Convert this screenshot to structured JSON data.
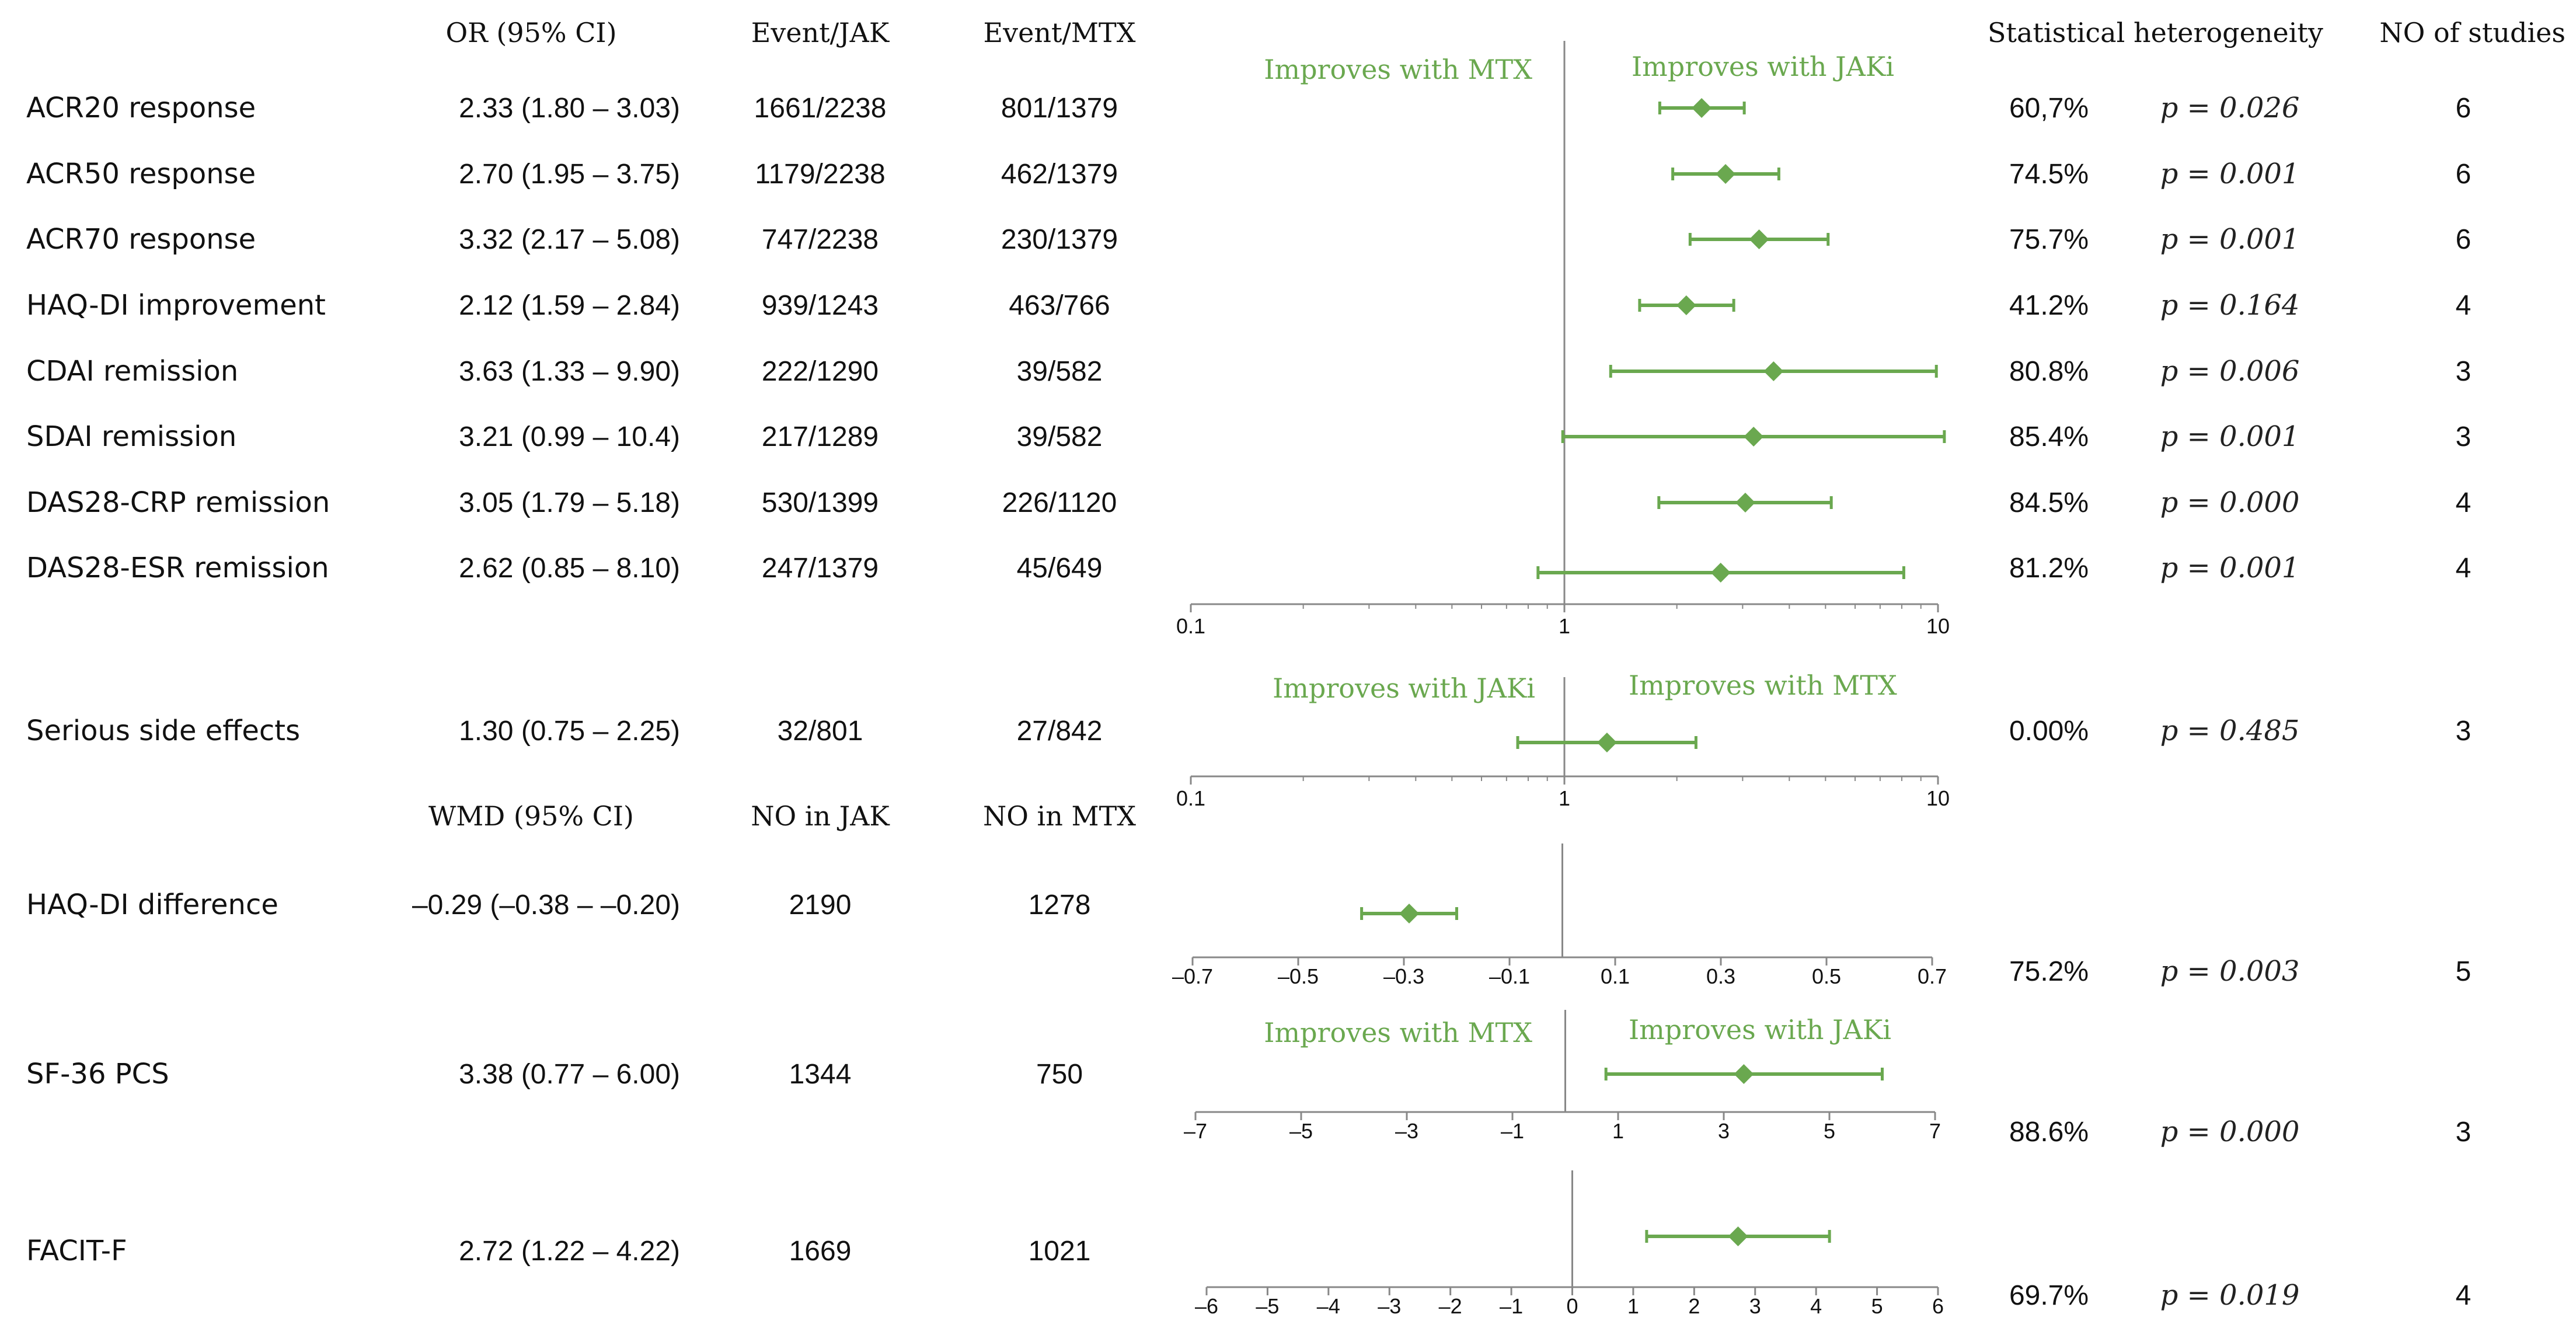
{
  "chart_data": {
    "type": "forest",
    "colors": {
      "marker": "#6aa84f",
      "axis": "#888888",
      "text": "#111111"
    },
    "headers": {
      "or_ci": "OR (95% CI)",
      "event_jak": "Event/JAK",
      "event_mtx": "Event/MTX",
      "heterogeneity": "Statistical heterogeneity",
      "n_studies": "NO of studies",
      "wmd_ci": "WMD (95% CI)",
      "n_jak": "NO in JAK",
      "n_mtx": "NO in MTX"
    },
    "favor_labels": {
      "efficacy_left": "Improves with MTX",
      "efficacy_right": "Improves with JAKi",
      "safety_left": "Improves with JAKi",
      "safety_right": "Improves with MTX",
      "sf36_left": "Improves with MTX",
      "sf36_right": "Improves with JAKi"
    },
    "panels": [
      {
        "id": "efficacy",
        "scale": "log",
        "xlim": [
          0.1,
          10
        ],
        "ref": 1,
        "ticks": [
          0.1,
          1,
          10
        ],
        "tick_labels": [
          "0.1",
          "1",
          "10"
        ],
        "rows": [
          {
            "label": "ACR20 response",
            "est_text": "2.33 (1.80 – 3.03)",
            "n1": "1661/2238",
            "n2": "801/1379",
            "i2": "60,7%",
            "p": "p = 0.026",
            "k": "6",
            "est": 2.33,
            "lo": 1.8,
            "hi": 3.03
          },
          {
            "label": "ACR50 response",
            "est_text": "2.70 (1.95 – 3.75)",
            "n1": "1179/2238",
            "n2": "462/1379",
            "i2": "74.5%",
            "p": "p = 0.001",
            "k": "6",
            "est": 2.7,
            "lo": 1.95,
            "hi": 3.75
          },
          {
            "label": "ACR70 response",
            "est_text": "3.32 (2.17 – 5.08)",
            "n1": "747/2238",
            "n2": "230/1379",
            "i2": "75.7%",
            "p": "p = 0.001",
            "k": "6",
            "est": 3.32,
            "lo": 2.17,
            "hi": 5.08
          },
          {
            "label": "HAQ-DI improvement",
            "est_text": "2.12 (1.59 – 2.84)",
            "n1": "939/1243",
            "n2": "463/766",
            "i2": "41.2%",
            "p": "p = 0.164",
            "k": "4",
            "est": 2.12,
            "lo": 1.59,
            "hi": 2.84
          },
          {
            "label": "CDAI remission",
            "est_text": "3.63 (1.33 – 9.90)",
            "n1": "222/1290",
            "n2": "39/582",
            "i2": "80.8%",
            "p": "p = 0.006",
            "k": "3",
            "est": 3.63,
            "lo": 1.33,
            "hi": 9.9
          },
          {
            "label": "SDAI remission",
            "est_text": "3.21 (0.99 – 10.4)",
            "n1": "217/1289",
            "n2": "39/582",
            "i2": "85.4%",
            "p": "p = 0.001",
            "k": "3",
            "est": 3.21,
            "lo": 0.99,
            "hi": 10.4
          },
          {
            "label": "DAS28-CRP remission",
            "est_text": "3.05 (1.79 – 5.18)",
            "n1": "530/1399",
            "n2": "226/1120",
            "i2": "84.5%",
            "p": "p = 0.000",
            "k": "4",
            "est": 3.05,
            "lo": 1.79,
            "hi": 5.18
          },
          {
            "label": "DAS28-ESR remission",
            "est_text": "2.62 (0.85 – 8.10)",
            "n1": "247/1379",
            "n2": "45/649",
            "i2": "81.2%",
            "p": "p = 0.001",
            "k": "4",
            "est": 2.62,
            "lo": 0.85,
            "hi": 8.1
          }
        ]
      },
      {
        "id": "safety",
        "scale": "log",
        "xlim": [
          0.1,
          10
        ],
        "ref": 1,
        "ticks": [
          0.1,
          1,
          10
        ],
        "tick_labels": [
          "0.1",
          "1",
          "10"
        ],
        "rows": [
          {
            "label": "Serious side effects",
            "est_text": "1.30 (0.75 – 2.25)",
            "n1": "32/801",
            "n2": "27/842",
            "i2": "0.00%",
            "p": "p = 0.485",
            "k": "3",
            "est": 1.3,
            "lo": 0.75,
            "hi": 2.25
          }
        ]
      },
      {
        "id": "haq",
        "scale": "linear",
        "xlim": [
          -0.7,
          0.7
        ],
        "ref": 0,
        "ticks": [
          -0.7,
          -0.5,
          -0.3,
          -0.1,
          0.1,
          0.3,
          0.5,
          0.7
        ],
        "tick_labels": [
          "–0.7",
          "–0.5",
          "–0.3",
          "–0.1",
          "0.1",
          "0.3",
          "0.5",
          "0.7"
        ],
        "rows": [
          {
            "label": "HAQ-DI difference",
            "est_text": "–0.29 (–0.38 – –0.20)",
            "n1": "2190",
            "n2": "1278",
            "i2": "75.2%",
            "p": "p = 0.003",
            "k": "5",
            "est": -0.29,
            "lo": -0.38,
            "hi": -0.2
          }
        ]
      },
      {
        "id": "sf36",
        "scale": "linear",
        "xlim": [
          -7,
          7
        ],
        "ref": 0,
        "ticks": [
          -7,
          -5,
          -3,
          -1,
          1,
          3,
          5,
          7
        ],
        "tick_labels": [
          "–7",
          "–5",
          "–3",
          "–1",
          "1",
          "3",
          "5",
          "7"
        ],
        "rows": [
          {
            "label": "SF-36 PCS",
            "est_text": "3.38 (0.77 – 6.00)",
            "n1": "1344",
            "n2": "750",
            "i2": "88.6%",
            "p": "p = 0.000",
            "k": "3",
            "est": 3.38,
            "lo": 0.77,
            "hi": 6.0
          }
        ]
      },
      {
        "id": "facit",
        "scale": "linear",
        "xlim": [
          -6,
          6
        ],
        "ref": 0,
        "ticks": [
          -6,
          -5,
          -4,
          -3,
          -2,
          -1,
          0,
          1,
          2,
          3,
          4,
          5,
          6
        ],
        "tick_labels": [
          "–6",
          "–5",
          "–4",
          "–3",
          "–2",
          "–1",
          "0",
          "1",
          "2",
          "3",
          "4",
          "5",
          "6"
        ],
        "rows": [
          {
            "label": "FACIT-F",
            "est_text": "2.72 (1.22 – 4.22)",
            "n1": "1669",
            "n2": "1021",
            "i2": "69.7%",
            "p": "p = 0.019",
            "k": "4",
            "est": 2.72,
            "lo": 1.22,
            "hi": 4.22
          }
        ]
      }
    ]
  }
}
